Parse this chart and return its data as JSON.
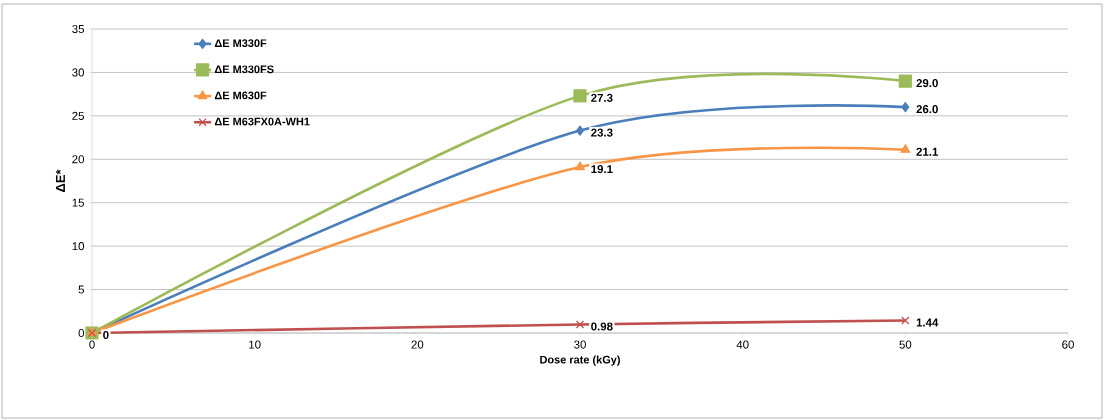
{
  "chart_data": {
    "type": "line",
    "xlabel": "Dose rate (kGy)",
    "ylabel": "ΔE*",
    "x": [
      0,
      30,
      50
    ],
    "xlim": [
      0,
      60
    ],
    "xticks": [
      0,
      10,
      20,
      30,
      40,
      50,
      60
    ],
    "ylim": [
      0,
      35
    ],
    "yticks": [
      0,
      5,
      10,
      15,
      20,
      25,
      30,
      35
    ],
    "grid": "y",
    "legend": "top left",
    "series": [
      {
        "name": "ΔE M330F",
        "color": "#4a7ebb",
        "marker": "diamond",
        "values": [
          0,
          23.3,
          26.0
        ],
        "value_labels": [
          "0",
          "23.3",
          "26.0"
        ]
      },
      {
        "name": "ΔE M330FS",
        "color": "#9bbb59",
        "marker": "square",
        "values": [
          0,
          27.3,
          29.0
        ],
        "value_labels": [
          null,
          "27.3",
          "29.0"
        ]
      },
      {
        "name": "ΔE M630F",
        "color": "#f79646",
        "marker": "triangle",
        "values": [
          0,
          19.1,
          21.1
        ],
        "value_labels": [
          null,
          "19.1",
          "21.1"
        ]
      },
      {
        "name": "ΔE M63FX0A-WH1",
        "color": "#c0504d",
        "marker": "cross",
        "values": [
          0,
          0.98,
          1.44
        ],
        "value_labels": [
          null,
          "0.98",
          "1.44"
        ]
      }
    ]
  }
}
